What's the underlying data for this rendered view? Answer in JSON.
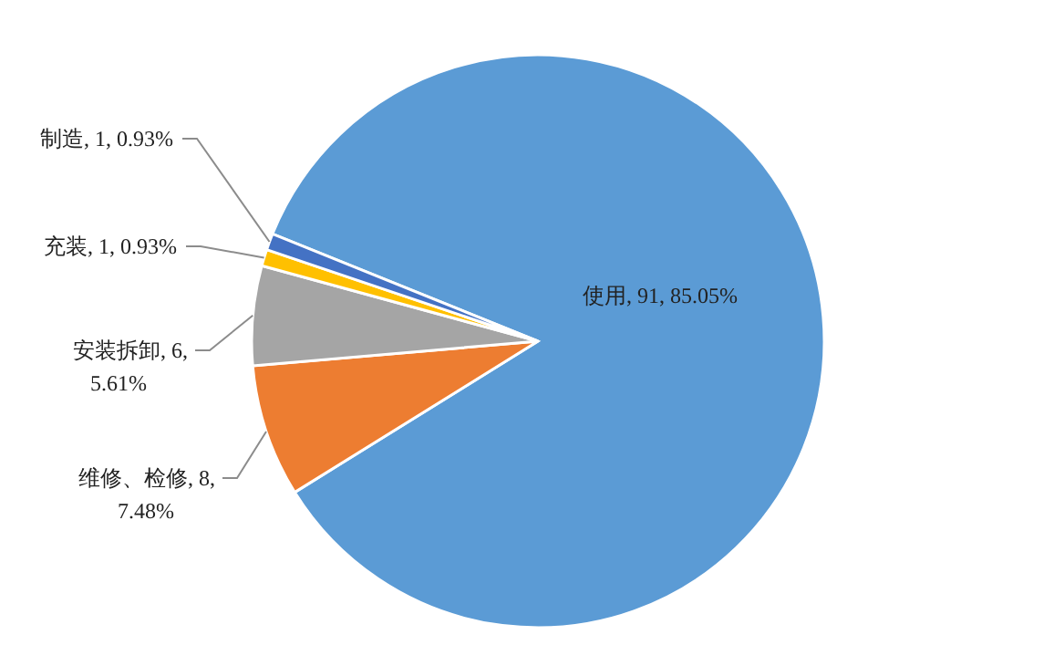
{
  "chart_data": {
    "type": "pie",
    "categories": [
      "使用",
      "维修、检修",
      "安装拆卸",
      "充装",
      "制造"
    ],
    "values": [
      91,
      8,
      6,
      1,
      1
    ],
    "value_labels": [
      ", 91, 85.05%",
      ", 8, 7.48%",
      ", 6, 5.61%",
      ", 1, 0.93%",
      ", 1, 0.93%"
    ],
    "colors": [
      "#5b9bd5",
      "#ed7d31",
      "#a5a5a5",
      "#ffc000",
      "#4472c4"
    ]
  }
}
